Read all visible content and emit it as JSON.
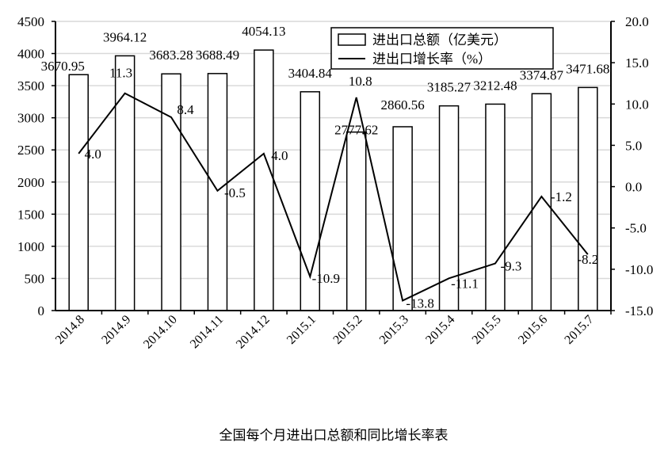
{
  "chart_data": {
    "type": "bar+line",
    "title": "全国每个月进出口总额和同比增长率表",
    "categories": [
      "2014.8",
      "2014.9",
      "2014.10",
      "2014.11",
      "2014.12",
      "2015.1",
      "2015.2",
      "2015.3",
      "2015.4",
      "2015.5",
      "2015.6",
      "2015.7"
    ],
    "series": [
      {
        "name": "进出口总额（亿美元）",
        "type": "bar",
        "axis": "left",
        "values": [
          3670.95,
          3964.12,
          3683.28,
          3688.49,
          4054.13,
          3404.84,
          2777.62,
          2860.56,
          3185.27,
          3212.48,
          3374.87,
          3471.68
        ],
        "labels": [
          "3670.95",
          "3964.12",
          "3683.28",
          "3688.49",
          "4054.13",
          "3404.84",
          "2777.62",
          "2860.56",
          "3185.27",
          "3212.48",
          "3374.87",
          "3471.68"
        ]
      },
      {
        "name": "进出口增长率（%）",
        "type": "line",
        "axis": "right",
        "values": [
          4.0,
          11.3,
          8.4,
          -0.5,
          4.0,
          -10.9,
          10.8,
          -13.8,
          -11.1,
          -9.3,
          -1.2,
          -8.2
        ],
        "labels": [
          "4.0",
          "11.3",
          "8.4",
          "-0.5",
          "4.0",
          "-10.9",
          "10.8",
          "-13.8",
          "-11.1",
          "-9.3",
          "-1.2",
          "-8.2"
        ]
      }
    ],
    "y_left": {
      "lim": [
        0,
        4500
      ],
      "ticks": [
        "0",
        "500",
        "1000",
        "1500",
        "2000",
        "2500",
        "3000",
        "3500",
        "4000",
        "4500"
      ]
    },
    "y_right": {
      "lim": [
        -15,
        20
      ],
      "ticks": [
        "-15.0",
        "-10.0",
        "-5.0",
        "0.0",
        "5.0",
        "10.0",
        "15.0",
        "20.0"
      ]
    },
    "grid": true,
    "legend": "top-center",
    "colors": {
      "bar_fill": "#ffffff",
      "bar_stroke": "#000000",
      "line": "#000000",
      "grid": "#d9d9d9"
    }
  }
}
